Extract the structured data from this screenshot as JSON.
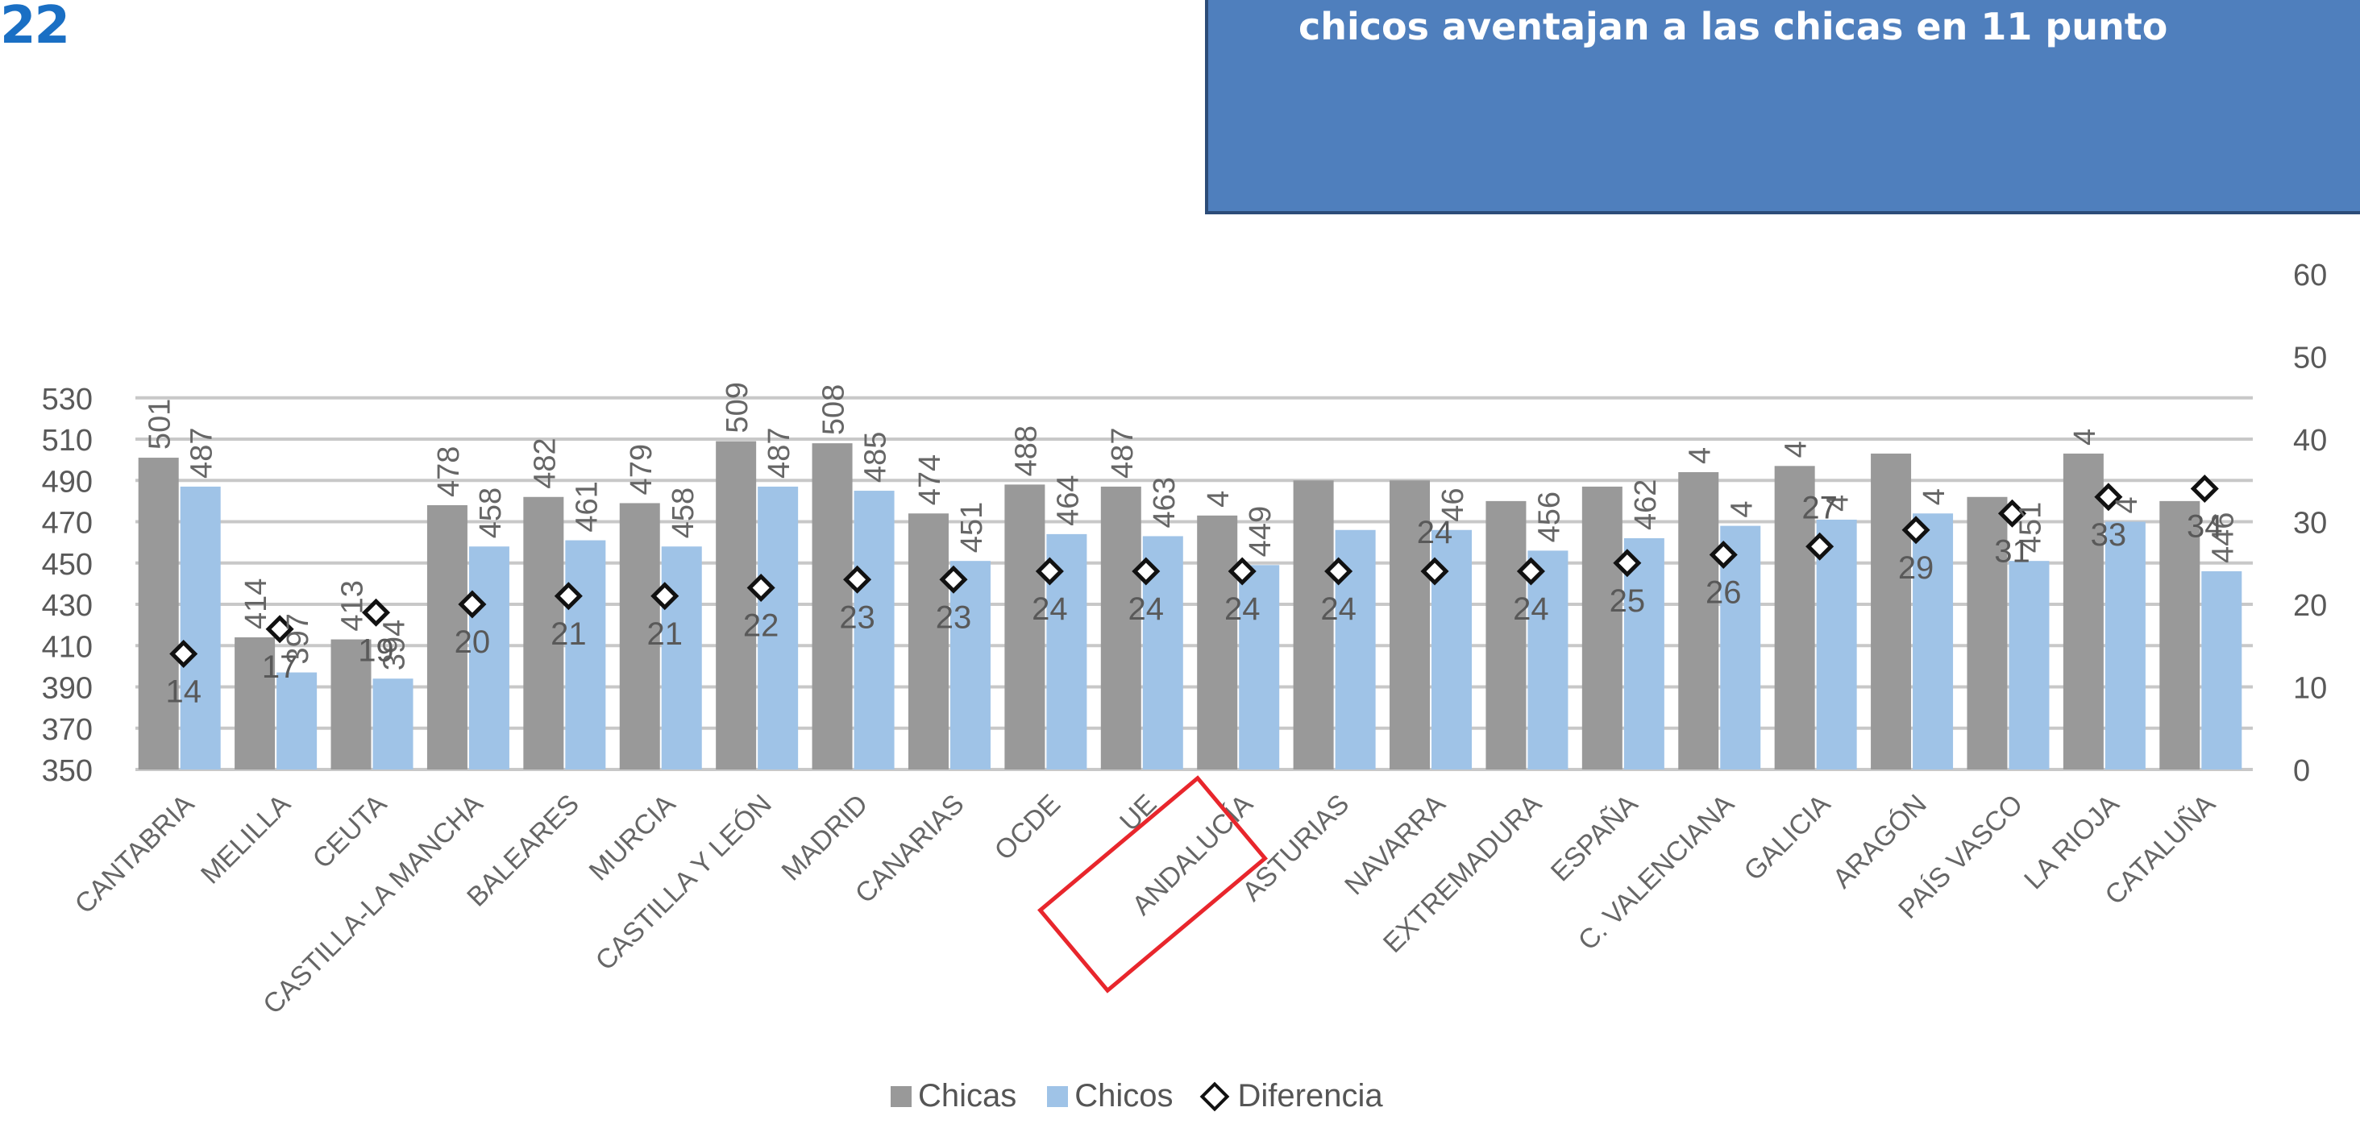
{
  "badge": "22",
  "callout_text": "chicos aventajan a las chicas en 11 punto",
  "chart_data": {
    "type": "bar",
    "categories": [
      "CANTABRIA",
      "MELILLA",
      "CEUTA",
      "CASTILLA-LA MANCHA",
      "BALEARES",
      "MURCIA",
      "CASTILLA Y LEÓN",
      "MADRID",
      "CANARIAS",
      "OCDE",
      "UE",
      "ANDALUCÍA",
      "ASTURIAS",
      "NAVARRA",
      "EXTREMADURA",
      "ESPAÑA",
      "C. VALENCIANA",
      "GALICIA",
      "ARAGÓN",
      "PAÍS VASCO",
      "LA RIOJA",
      "CATALUÑA"
    ],
    "series": [
      {
        "name": "Chicas",
        "color": "#999999",
        "values": [
          501,
          414,
          413,
          478,
          482,
          479,
          509,
          508,
          474,
          488,
          487,
          473,
          490,
          490,
          480,
          487,
          494,
          497,
          503,
          482,
          503,
          480
        ]
      },
      {
        "name": "Chicos",
        "color": "#9fc3e7",
        "values": [
          487,
          397,
          394,
          458,
          461,
          458,
          487,
          485,
          451,
          464,
          463,
          449,
          466,
          466,
          456,
          462,
          468,
          471,
          474,
          451,
          470,
          446
        ]
      },
      {
        "name": "Diferencia",
        "marker": "diamond",
        "values": [
          14,
          17,
          19,
          20,
          21,
          21,
          22,
          23,
          23,
          24,
          24,
          24,
          24,
          24,
          24,
          25,
          26,
          27,
          29,
          31,
          33,
          34
        ]
      }
    ],
    "bar_labels_chicas": [
      "501",
      "414",
      "413",
      "478",
      "482",
      "479",
      "509",
      "508",
      "474",
      "488",
      "487",
      "4",
      "",
      "",
      "",
      "",
      "4",
      "4",
      "",
      "",
      "4",
      ""
    ],
    "bar_labels_chicos": [
      "487",
      "397",
      "394",
      "458",
      "461",
      "458",
      "487",
      "485",
      "451",
      "464",
      "463",
      "449",
      "",
      "46",
      "456",
      "462",
      "4",
      "4",
      "4",
      "451",
      "4",
      "446"
    ],
    "diff_labels": [
      "14",
      "17",
      "19",
      "20",
      "21",
      "21",
      "22",
      "23",
      "23",
      "24",
      "24",
      "24",
      "24",
      "24",
      "24",
      "25",
      "26",
      "27",
      "29",
      "31",
      "33",
      "34"
    ],
    "y_left": {
      "min": 350,
      "max": 530,
      "ticks": [
        "350",
        "370",
        "390",
        "410",
        "430",
        "450",
        "470",
        "490",
        "510",
        "530"
      ]
    },
    "y_right": {
      "min": 0,
      "max": 90,
      "ticks": [
        "0",
        "10",
        "20",
        "30",
        "40",
        "50",
        "60"
      ]
    },
    "grid": true,
    "highlight": "ANDALUCÍA",
    "legend_position": "bottom"
  }
}
